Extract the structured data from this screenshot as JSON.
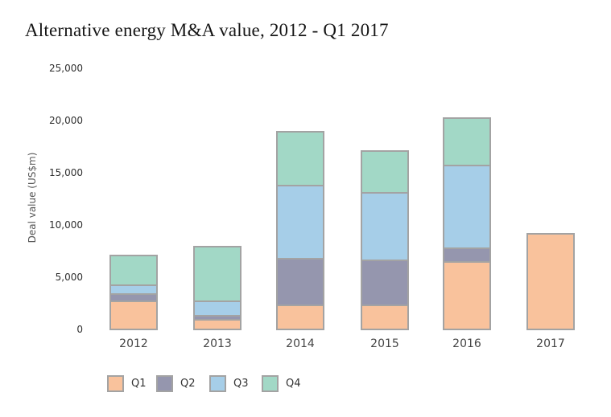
{
  "chart_data": {
    "type": "bar",
    "stacked": true,
    "title": "Alternative energy M&A value, 2012 - Q1 2017",
    "xlabel": "",
    "ylabel": "Deal value (US$m)",
    "categories": [
      "2012",
      "2013",
      "2014",
      "2015",
      "2016",
      "2017"
    ],
    "series": [
      {
        "name": "Q1",
        "color": "#f9c29c",
        "values": [
          2500,
          750,
          2150,
          2150,
          6300,
          9300
        ]
      },
      {
        "name": "Q2",
        "color": "#9596ae",
        "values": [
          750,
          400,
          4450,
          4300,
          1350,
          0
        ]
      },
      {
        "name": "Q3",
        "color": "#a6cee8",
        "values": [
          850,
          1400,
          7000,
          6450,
          7900,
          0
        ]
      },
      {
        "name": "Q4",
        "color": "#a2d8c6",
        "values": [
          3100,
          5550,
          5500,
          4350,
          4800,
          0
        ]
      }
    ],
    "totals": [
      7200,
      8100,
      19100,
      17250,
      20350,
      9300
    ],
    "ylim": [
      0,
      25000
    ],
    "yticks": [
      0,
      5000,
      10000,
      15000,
      20000,
      25000
    ],
    "ytick_labels": [
      "0",
      "5,000",
      "10,000",
      "15,000",
      "20,000",
      "25,000"
    ],
    "grid": false,
    "legend_position": "bottom",
    "bar_border_color": "#a3a3a3"
  }
}
